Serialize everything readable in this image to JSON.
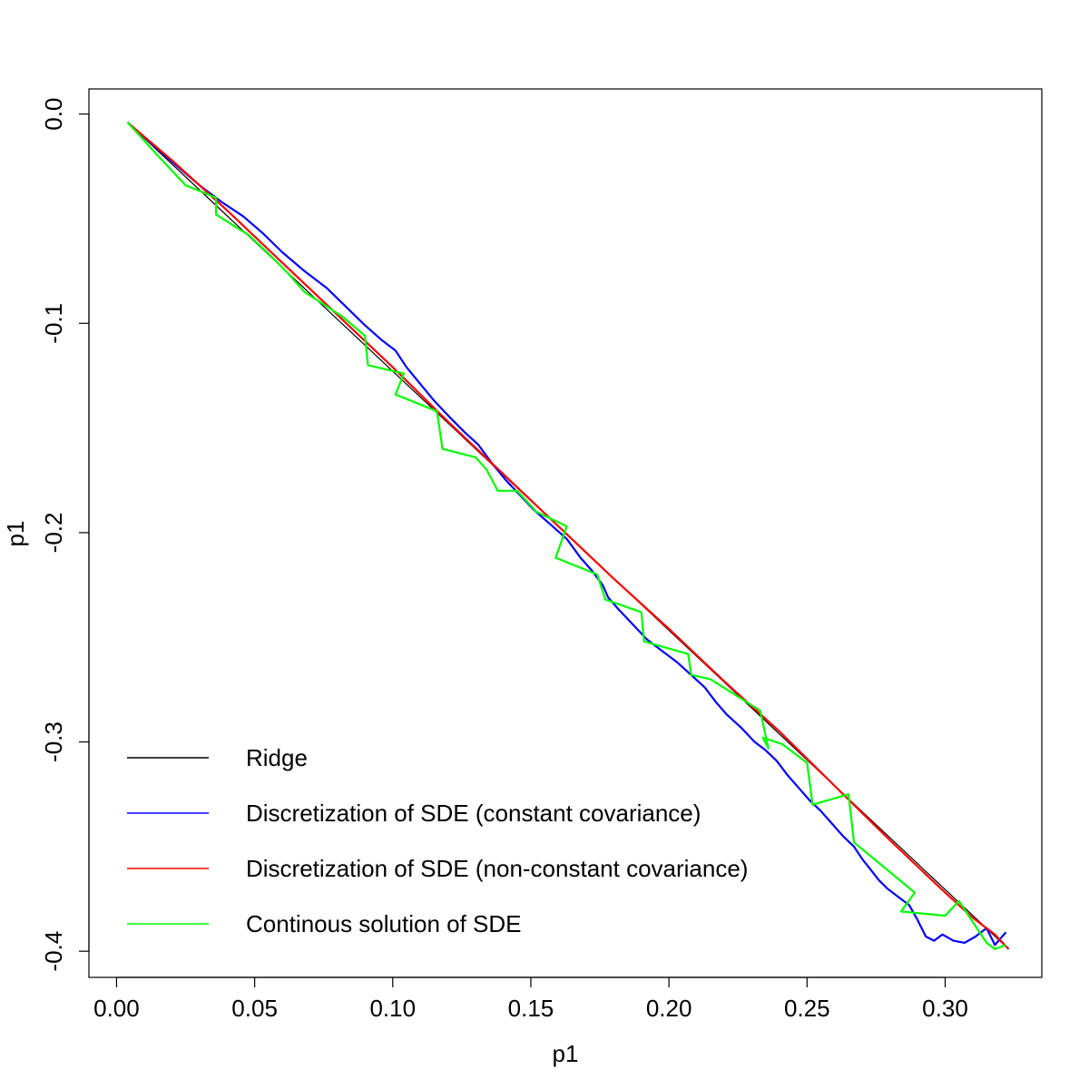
{
  "chart_data": {
    "type": "line",
    "xlabel": "p1",
    "ylabel": "p1",
    "xlim": [
      -0.01,
      0.335
    ],
    "ylim": [
      -0.4125,
      0.012
    ],
    "x_ticks": [
      0.0,
      0.05,
      0.1,
      0.15,
      0.2,
      0.25,
      0.3
    ],
    "x_tick_labels": [
      "0.00",
      "0.05",
      "0.10",
      "0.15",
      "0.20",
      "0.25",
      "0.30"
    ],
    "y_ticks": [
      0.0,
      -0.1,
      -0.2,
      -0.3,
      -0.4
    ],
    "y_tick_labels": [
      "0.0",
      "-0.1",
      "-0.2",
      "-0.3",
      "-0.4"
    ],
    "grid": false,
    "legend_position": "bottom-left",
    "series": [
      {
        "name": "Ridge",
        "color": "#000000",
        "x": [
          0.004,
          0.323
        ],
        "y": [
          -0.004,
          -0.399
        ]
      },
      {
        "name": "Discretization of SDE (constant covariance)",
        "color": "#0000ff",
        "x": [
          0.004,
          0.01,
          0.016,
          0.022,
          0.03,
          0.038,
          0.046,
          0.053,
          0.06,
          0.068,
          0.076,
          0.083,
          0.09,
          0.096,
          0.101,
          0.105,
          0.11,
          0.115,
          0.12,
          0.126,
          0.131,
          0.136,
          0.141,
          0.146,
          0.151,
          0.157,
          0.163,
          0.168,
          0.172,
          0.176,
          0.178,
          0.182,
          0.187,
          0.192,
          0.197,
          0.203,
          0.208,
          0.213,
          0.217,
          0.221,
          0.226,
          0.231,
          0.235,
          0.239,
          0.243,
          0.247,
          0.251,
          0.255,
          0.259,
          0.263,
          0.267,
          0.27,
          0.273,
          0.276,
          0.279,
          0.283,
          0.287,
          0.29,
          0.293,
          0.296,
          0.299,
          0.303,
          0.307,
          0.311,
          0.315,
          0.318,
          0.32,
          0.322
        ],
        "y": [
          -0.004,
          -0.011,
          -0.018,
          -0.025,
          -0.034,
          -0.042,
          -0.049,
          -0.057,
          -0.066,
          -0.075,
          -0.083,
          -0.092,
          -0.101,
          -0.108,
          -0.113,
          -0.121,
          -0.129,
          -0.137,
          -0.144,
          -0.152,
          -0.158,
          -0.167,
          -0.175,
          -0.182,
          -0.189,
          -0.196,
          -0.203,
          -0.212,
          -0.218,
          -0.225,
          -0.231,
          -0.237,
          -0.244,
          -0.251,
          -0.256,
          -0.262,
          -0.268,
          -0.274,
          -0.281,
          -0.287,
          -0.293,
          -0.3,
          -0.304,
          -0.309,
          -0.316,
          -0.322,
          -0.328,
          -0.333,
          -0.339,
          -0.345,
          -0.35,
          -0.356,
          -0.361,
          -0.366,
          -0.37,
          -0.374,
          -0.378,
          -0.385,
          -0.393,
          -0.395,
          -0.392,
          -0.395,
          -0.396,
          -0.393,
          -0.389,
          -0.397,
          -0.394,
          -0.391
        ]
      },
      {
        "name": "Discretization of SDE (non-constant covariance)",
        "color": "#ff0000",
        "x": [
          0.004,
          0.02,
          0.04,
          0.06,
          0.08,
          0.1,
          0.12,
          0.14,
          0.16,
          0.18,
          0.2,
          0.22,
          0.24,
          0.26,
          0.28,
          0.3,
          0.31,
          0.318,
          0.323
        ],
        "y": [
          -0.004,
          -0.022,
          -0.046,
          -0.071,
          -0.096,
          -0.121,
          -0.147,
          -0.172,
          -0.197,
          -0.222,
          -0.246,
          -0.271,
          -0.295,
          -0.321,
          -0.347,
          -0.372,
          -0.384,
          -0.392,
          -0.399
        ]
      },
      {
        "name": "Continous solution of SDE",
        "color": "#00ff00",
        "x": [
          0.004,
          0.015,
          0.025,
          0.036,
          0.036,
          0.048,
          0.056,
          0.062,
          0.068,
          0.075,
          0.082,
          0.09,
          0.091,
          0.104,
          0.101,
          0.116,
          0.118,
          0.13,
          0.134,
          0.138,
          0.145,
          0.152,
          0.163,
          0.159,
          0.174,
          0.177,
          0.19,
          0.191,
          0.207,
          0.208,
          0.215,
          0.233,
          0.236,
          0.234,
          0.241,
          0.25,
          0.252,
          0.265,
          0.267,
          0.278,
          0.289,
          0.284,
          0.3,
          0.305,
          0.315,
          0.318,
          0.322
        ],
        "y": [
          -0.004,
          -0.02,
          -0.034,
          -0.04,
          -0.048,
          -0.058,
          -0.068,
          -0.076,
          -0.085,
          -0.091,
          -0.097,
          -0.106,
          -0.12,
          -0.124,
          -0.134,
          -0.142,
          -0.16,
          -0.164,
          -0.17,
          -0.18,
          -0.18,
          -0.19,
          -0.197,
          -0.212,
          -0.22,
          -0.232,
          -0.238,
          -0.252,
          -0.258,
          -0.268,
          -0.27,
          -0.285,
          -0.303,
          -0.298,
          -0.301,
          -0.31,
          -0.33,
          -0.325,
          -0.348,
          -0.36,
          -0.372,
          -0.381,
          -0.383,
          -0.376,
          -0.396,
          -0.399,
          -0.397
        ]
      }
    ]
  },
  "legend": {
    "items": [
      {
        "label": "Ridge",
        "color": "#000000"
      },
      {
        "label": "Discretization of SDE (constant covariance)",
        "color": "#0000ff"
      },
      {
        "label": "Discretization of SDE (non-constant covariance)",
        "color": "#ff0000"
      },
      {
        "label": "Continous solution of SDE",
        "color": "#00ff00"
      }
    ]
  }
}
